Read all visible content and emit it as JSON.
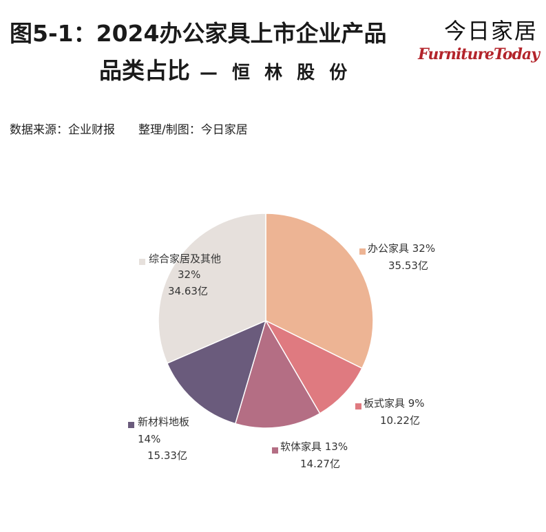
{
  "header": {
    "title_line1": "图5-1：2024办公家具上市企业产品",
    "title_line2": "品类占比",
    "title_company": "— 恒 林 股 份",
    "brand_cn": "今日家居",
    "brand_en": "FurnitureToday"
  },
  "source": {
    "text": "数据来源：企业财报",
    "credit": "整理/制图：今日家居"
  },
  "chart_data": {
    "type": "pie",
    "title": "2024办公家具上市企业产品品类占比",
    "slices": [
      {
        "name": "办公家具",
        "percent_label": "32%",
        "value": 35.53,
        "value_label": "35.53亿",
        "color": "#edb494"
      },
      {
        "name": "板式家具",
        "percent_label": "9%",
        "value": 10.22,
        "value_label": "10.22亿",
        "color": "#df7a80"
      },
      {
        "name": "软体家具",
        "percent_label": "13%",
        "value": 14.27,
        "value_label": "14.27亿",
        "color": "#b46e84"
      },
      {
        "name": "新材料地板",
        "percent_label": "14%",
        "value": 15.33,
        "value_label": "15.33亿",
        "color": "#6a5b7c"
      },
      {
        "name": "综合家居及其他",
        "percent_label": "32%",
        "value": 34.63,
        "value_label": "34.63亿",
        "color": "#e6e0dc"
      }
    ],
    "start": "12 o'clock",
    "direction": "clockwise"
  }
}
